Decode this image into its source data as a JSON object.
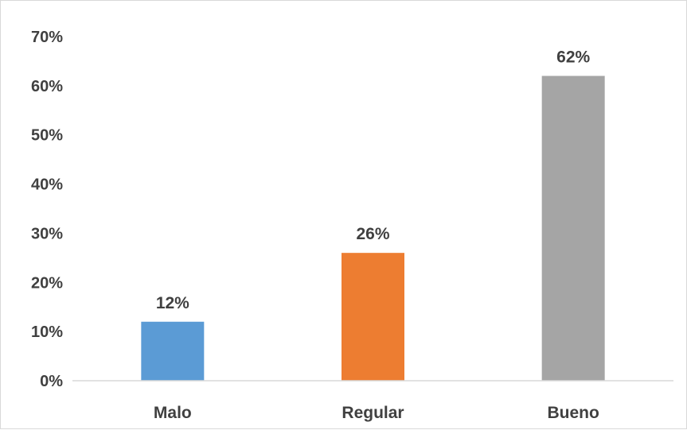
{
  "chart_data": {
    "type": "bar",
    "title": "",
    "xlabel": "",
    "ylabel": "",
    "categories": [
      "Malo",
      "Regular",
      "Bueno"
    ],
    "values": [
      12,
      26,
      62
    ],
    "data_labels": [
      "12%",
      "26%",
      "62%"
    ],
    "colors": [
      "#5b9bd5",
      "#ed7d31",
      "#a5a5a5"
    ],
    "ylim": [
      0,
      70
    ],
    "yticks": [
      0,
      10,
      20,
      30,
      40,
      50,
      60,
      70
    ],
    "ytick_labels": [
      "0%",
      "10%",
      "20%",
      "30%",
      "40%",
      "50%",
      "60%",
      "70%"
    ],
    "grid": false,
    "legend": "none"
  }
}
